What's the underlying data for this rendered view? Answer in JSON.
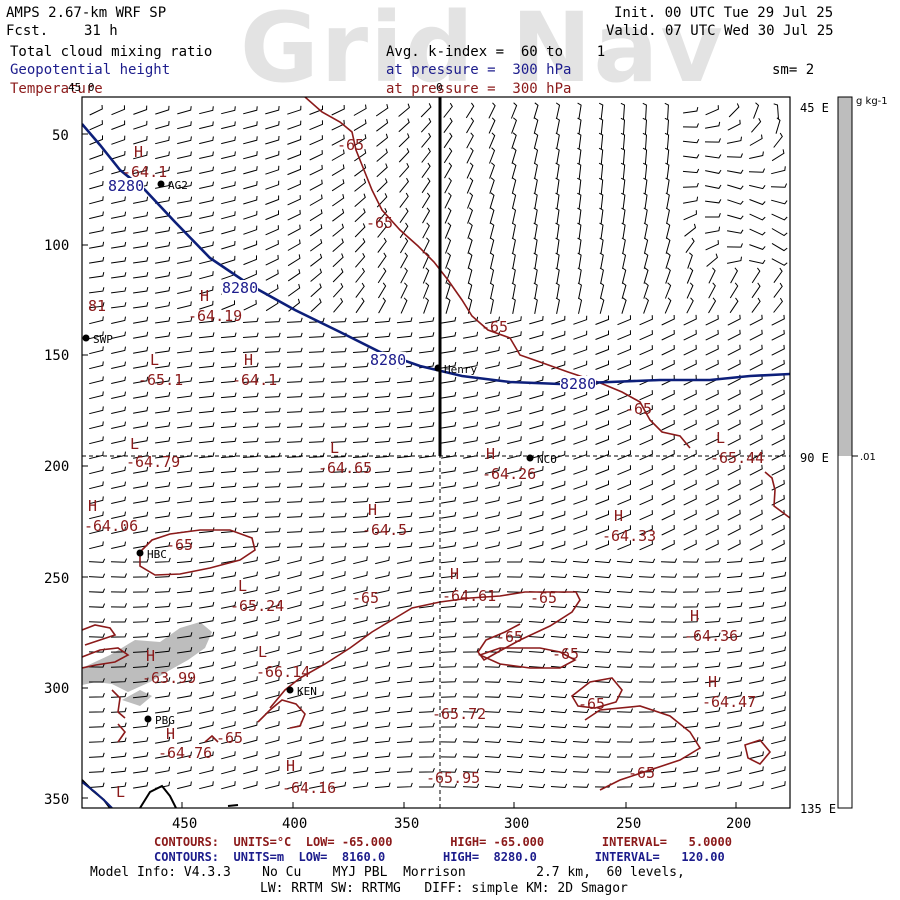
{
  "watermark": "Grid Nav",
  "header": {
    "model": "AMPS 2.67-km WRF SP",
    "fcst_label": "Fcst.",
    "fcst_value": "31 h",
    "init": "Init. 00 UTC Tue 29 Jul 25",
    "valid": "Valid. 07 UTC Wed 30 Jul 25",
    "field1": "Total cloud mixing ratio",
    "field1_detail": "Avg. k-index =  60 to    1",
    "field2": "Geopotential height",
    "field2_detail": "at pressure =  300 hPa",
    "smoothing": "sm= 2",
    "field3": "Temperature",
    "field3_detail": "at pressure =  300 hPa"
  },
  "axes": {
    "y_ticks": [
      "50",
      "100",
      "150",
      "200",
      "250",
      "300",
      "350"
    ],
    "x_ticks": [
      "450",
      "400",
      "350",
      "300",
      "250",
      "200"
    ],
    "top_tick": "0",
    "top_left_tick": "45 0",
    "right_labels": [
      "45 E",
      "90 E",
      "135 E"
    ]
  },
  "colorbar": {
    "unit": "g kg-1",
    "tick": ".01"
  },
  "stations": [
    {
      "name": "AG2"
    },
    {
      "name": "SWP"
    },
    {
      "name": "Henry"
    },
    {
      "name": "NCO"
    },
    {
      "name": "HBC"
    },
    {
      "name": "KEN"
    },
    {
      "name": "PBG"
    }
  ],
  "height_labels": [
    "8280",
    "8280",
    "8280",
    "8280"
  ],
  "temp_labels": [
    "-65",
    "-65",
    "-65",
    "-65",
    "-65",
    "-65",
    "-65",
    "-65",
    "-65",
    "-65",
    "-65",
    "-65",
    "81"
  ],
  "temp_extrema": [
    {
      "kind": "H",
      "value": "-64.1"
    },
    {
      "kind": "H",
      "value": "-64.19"
    },
    {
      "kind": "L",
      "value": "-65.1"
    },
    {
      "kind": "H",
      "value": "-64.1"
    },
    {
      "kind": "L",
      "value": "-64.79"
    },
    {
      "kind": "L",
      "value": "-64.65"
    },
    {
      "kind": "H",
      "value": "-64.26"
    },
    {
      "kind": "L",
      "value": "-65.44"
    },
    {
      "kind": "H",
      "value": "-64.06"
    },
    {
      "kind": "H",
      "value": "-64.5"
    },
    {
      "kind": "H",
      "value": "-64.33"
    },
    {
      "kind": "L",
      "value": "-65.24"
    },
    {
      "kind": "H",
      "value": "-64.61"
    },
    {
      "kind": "H",
      "value": "-64.36"
    },
    {
      "kind": "H",
      "value": "-63.99"
    },
    {
      "kind": "L",
      "value": "-66.14"
    },
    {
      "kind": "H",
      "value": "-64.47"
    },
    {
      "kind": "H",
      "value": "-64.76"
    },
    {
      "kind": "",
      "value": "-65.72"
    },
    {
      "kind": "H",
      "value": "-64.16"
    },
    {
      "kind": "",
      "value": "-65.95"
    },
    {
      "kind": "L",
      "value": ""
    }
  ],
  "footer": {
    "temp_contours": "CONTOURS:  UNITS=°C  LOW= -65.000        HIGH= -65.000        INTERVAL=   5.0000",
    "height_contours": "CONTOURS:  UNITS=m  LOW=  8160.0        HIGH=  8280.0        INTERVAL=   120.00",
    "model_info": "Model Info: V4.3.3    No Cu    MYJ PBL  Morrison         2.7 km,  60 levels,",
    "model_info2": "LW: RRTM SW: RRTMG   DIFF: simple KM: 2D Smagor"
  },
  "colors": {
    "height_contour": "#0d1f7a",
    "temp_contour": "#8b1a1a",
    "cloud_fill": "#bdbdbd",
    "frame": "#000000"
  }
}
